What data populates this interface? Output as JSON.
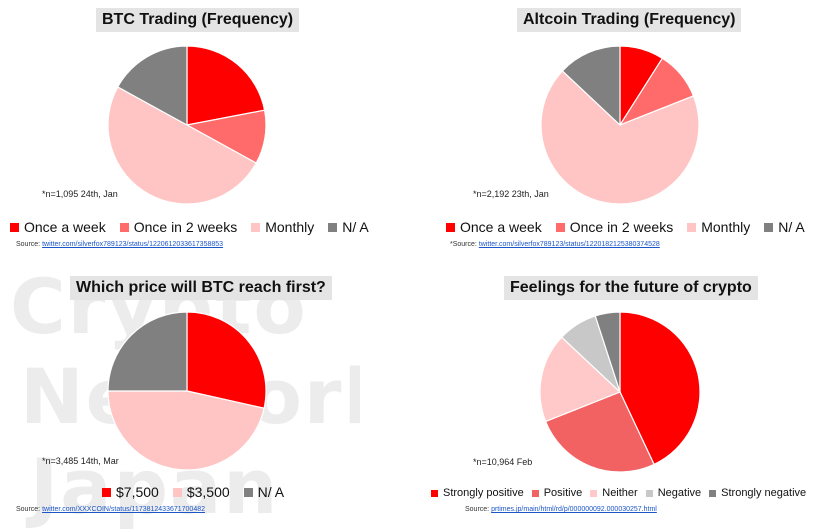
{
  "watermark": [
    "Crypto",
    "Network",
    "Japan"
  ],
  "chart_data": [
    {
      "type": "pie",
      "title": "BTC Trading (Frequency)",
      "categories": [
        "Once a week",
        "Once in 2 weeks",
        "Monthly",
        "N/ A"
      ],
      "values": [
        22,
        11,
        50,
        17
      ],
      "colors": [
        "#ff0000",
        "#ff6a6a",
        "#ffc5c5",
        "#808080"
      ],
      "note": "*n=1,095 24th, Jan",
      "source_label": "Source:",
      "source_link": "twitter.com/silverfox789123/status/1220612033617358853"
    },
    {
      "type": "pie",
      "title": "Altcoin Trading (Frequency)",
      "categories": [
        "Once a week",
        "Once in 2 weeks",
        "Monthly",
        "N/ A"
      ],
      "values": [
        9,
        10,
        68,
        13
      ],
      "colors": [
        "#ff0000",
        "#ff6a6a",
        "#ffc5c5",
        "#808080"
      ],
      "note": "*n=2,192 23th, Jan",
      "source_label": "*Source:",
      "source_link": "twitter.com/silverfox789123/status/1220182125380374528"
    },
    {
      "type": "pie",
      "title": "Which price will BTC reach first?",
      "categories": [
        "$7,500",
        "$3,500",
        "N/ A"
      ],
      "values": [
        28.5,
        46.5,
        25
      ],
      "colors": [
        "#ff0000",
        "#ffc5c5",
        "#808080"
      ],
      "note": "*n=3,485 14th, Mar",
      "source_label": "Source:",
      "source_link": "twitter.com/XXXCOIN/status/1173812433671700482"
    },
    {
      "type": "pie",
      "title": "Feelings for the future of crypto",
      "categories": [
        "Strongly positive",
        "Positive",
        "Neither",
        "Negative",
        "Strongly negative"
      ],
      "values": [
        43,
        26,
        18,
        8,
        5
      ],
      "colors": [
        "#ff0000",
        "#f26262",
        "#ffc9c9",
        "#c8c8c8",
        "#808080"
      ],
      "note": "*n=10,964 Feb",
      "source_label": "Source:",
      "source_link": "prtimes.jp/main/html/rd/p/000000092.000030257.html"
    }
  ]
}
